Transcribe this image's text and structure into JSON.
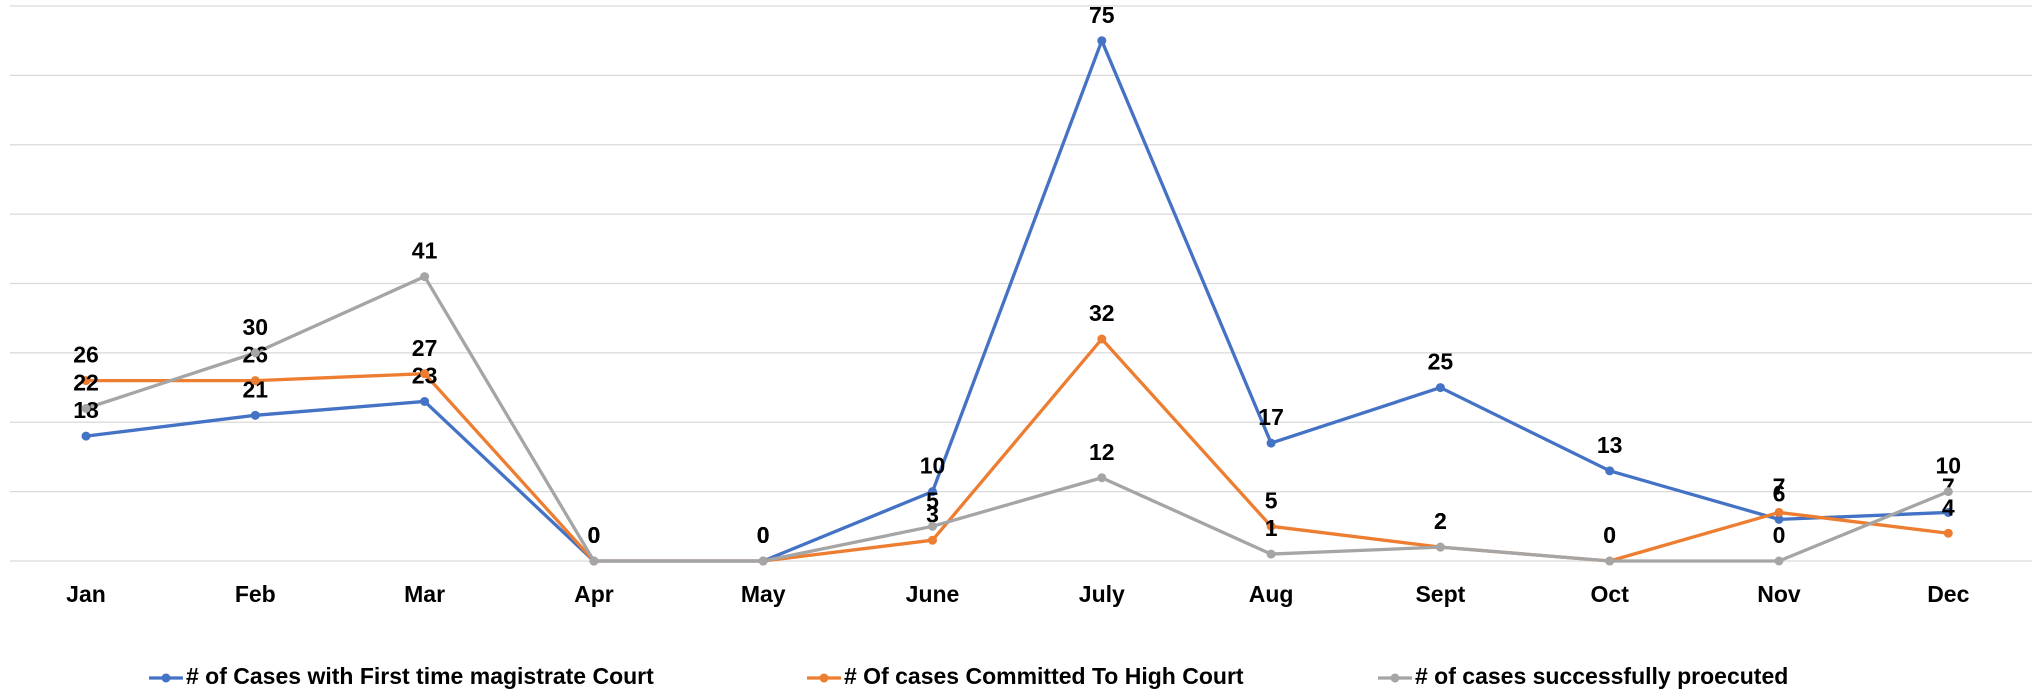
{
  "chart_data": {
    "type": "line",
    "categories": [
      "Jan",
      "Feb",
      "Mar",
      "Apr",
      "May",
      "June",
      "July",
      "Aug",
      "Sept",
      "Oct",
      "Nov",
      "Dec"
    ],
    "series": [
      {
        "name": "# of Cases with First time magistrate Court",
        "color": "#4472c4",
        "values": [
          18,
          21,
          23,
          0,
          0,
          10,
          75,
          17,
          25,
          13,
          6,
          7
        ]
      },
      {
        "name": "# Of cases Committed To High Court",
        "color": "#ed7d31",
        "values": [
          26,
          26,
          27,
          0,
          0,
          3,
          32,
          5,
          2,
          0,
          7,
          4
        ]
      },
      {
        "name": "# of cases successfully proecuted",
        "color": "#a5a5a5",
        "values": [
          22,
          30,
          41,
          0,
          0,
          5,
          12,
          1,
          2,
          0,
          0,
          10
        ]
      }
    ],
    "ylim": [
      0,
      80
    ],
    "yticks": [
      0,
      10,
      20,
      30,
      40,
      50,
      60,
      70,
      80
    ],
    "grid": true,
    "legend": "bottom"
  }
}
